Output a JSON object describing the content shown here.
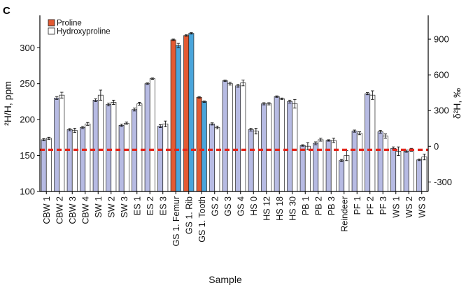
{
  "panel_label": "C",
  "chart_data": {
    "type": "bar",
    "xlabel": "Sample",
    "ylabel": "²H/H, ppm",
    "y2label": "δ²H, ‰",
    "ylim": [
      100,
      345
    ],
    "yticks": [
      100,
      150,
      200,
      250,
      300
    ],
    "y2lim": [
      -380,
      1100
    ],
    "y2ticks": [
      -300,
      0,
      300,
      600,
      900
    ],
    "reference_line": 158,
    "legend_position": "top-left",
    "colors": {
      "default_pair": [
        "#b7bbe3",
        "#ffffff"
      ],
      "highlight_pair": [
        "#e35a33",
        "#4aa5db"
      ],
      "reference_line": "#e3261b"
    },
    "series": [
      {
        "name": "Proline",
        "legend_color": "#e35a33"
      },
      {
        "name": "Hydroxyproline",
        "legend_color": "#ffffff"
      }
    ],
    "categories": [
      {
        "label": "CBW 1",
        "values": [
          172,
          174
        ],
        "err": [
          1.5,
          1.5
        ]
      },
      {
        "label": "CBW 2",
        "values": [
          230,
          234
        ],
        "err": [
          2,
          4
        ]
      },
      {
        "label": "CBW 3",
        "values": [
          186,
          185
        ],
        "err": [
          1.5,
          3
        ]
      },
      {
        "label": "CBW 4",
        "values": [
          189,
          194
        ],
        "err": [
          1.5,
          2
        ]
      },
      {
        "label": "SW 1",
        "values": [
          227,
          234
        ],
        "err": [
          2,
          7
        ]
      },
      {
        "label": "SW 2",
        "values": [
          221,
          224
        ],
        "err": [
          2,
          3
        ]
      },
      {
        "label": "SW 3",
        "values": [
          192,
          195
        ],
        "err": [
          1.5,
          1.5
        ]
      },
      {
        "label": "ES 1",
        "values": [
          214,
          222
        ],
        "err": [
          2,
          2
        ]
      },
      {
        "label": "ES 2",
        "values": [
          250,
          257
        ],
        "err": [
          1,
          1
        ]
      },
      {
        "label": "ES 3",
        "values": [
          191,
          194
        ],
        "err": [
          2,
          4
        ]
      },
      {
        "label": "GS 1. Femur",
        "values": [
          311,
          303
        ],
        "err": [
          1,
          3
        ],
        "highlight": true
      },
      {
        "label": "GS 1. Rib",
        "values": [
          317,
          320
        ],
        "err": [
          1,
          1
        ],
        "highlight": true
      },
      {
        "label": "GS 1. Tooth",
        "values": [
          231,
          225
        ],
        "err": [
          1,
          1
        ],
        "highlight": true
      },
      {
        "label": "GS 2",
        "values": [
          194,
          189
        ],
        "err": [
          1.5,
          2
        ]
      },
      {
        "label": "GS 3",
        "values": [
          254,
          250
        ],
        "err": [
          1,
          2
        ]
      },
      {
        "label": "GS 4",
        "values": [
          247,
          251
        ],
        "err": [
          2,
          4
        ]
      },
      {
        "label": "HS 0",
        "values": [
          186,
          184
        ],
        "err": [
          2,
          4
        ]
      },
      {
        "label": "HS 12",
        "values": [
          222,
          222
        ],
        "err": [
          1.5,
          1.5
        ]
      },
      {
        "label": "HS 18",
        "values": [
          232,
          229
        ],
        "err": [
          1,
          1
        ]
      },
      {
        "label": "HS 30",
        "values": [
          225,
          222
        ],
        "err": [
          2,
          6
        ]
      },
      {
        "label": "PB 1",
        "values": [
          164,
          163
        ],
        "err": [
          1,
          5
        ]
      },
      {
        "label": "PB 2",
        "values": [
          167,
          172
        ],
        "err": [
          2,
          2
        ]
      },
      {
        "label": "PB 3",
        "values": [
          171,
          171
        ],
        "err": [
          1,
          3
        ]
      },
      {
        "label": "Reindeer",
        "values": [
          143,
          150
        ],
        "err": [
          1.5,
          7
        ]
      },
      {
        "label": "PF 1",
        "values": [
          184,
          181
        ],
        "err": [
          1.5,
          2
        ]
      },
      {
        "label": "PF 2",
        "values": [
          236,
          234
        ],
        "err": [
          1.5,
          6
        ]
      },
      {
        "label": "PF 3",
        "values": [
          183,
          177
        ],
        "err": [
          2,
          3
        ]
      },
      {
        "label": "WS 1",
        "values": [
          160,
          156
        ],
        "err": [
          2,
          6
        ]
      },
      {
        "label": "WS 2",
        "values": [
          156,
          158
        ],
        "err": [
          1.5,
          2
        ]
      },
      {
        "label": "WS 3",
        "values": [
          144,
          148
        ],
        "err": [
          1,
          4
        ]
      }
    ]
  }
}
